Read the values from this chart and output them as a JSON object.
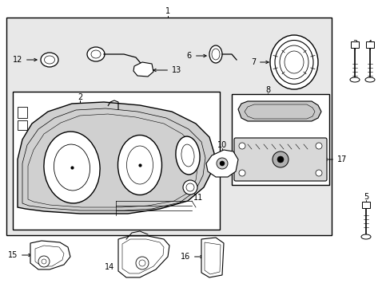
{
  "fig_w": 4.89,
  "fig_h": 3.6,
  "dpi": 100,
  "bg": "#ffffff",
  "gray": "#e8e8e8",
  "lc": "#000000",
  "lw_main": 0.8,
  "lw_thin": 0.5,
  "fs": 7.0
}
